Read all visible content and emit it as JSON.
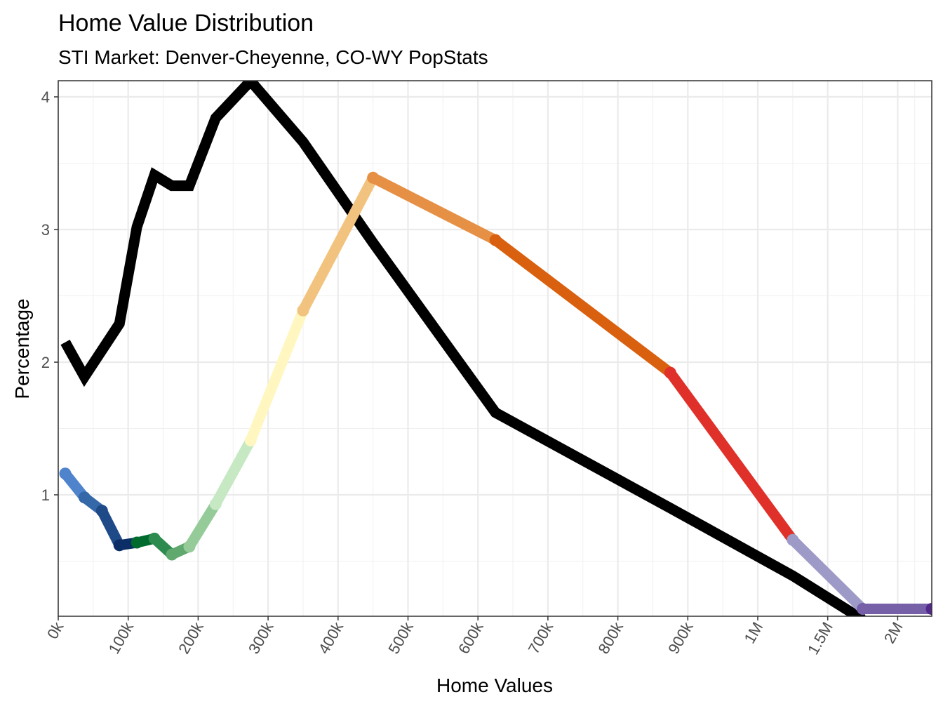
{
  "chart_data": {
    "type": "line",
    "title": "Home Value Distribution",
    "subtitle": "STI Market: Denver-Cheyenne, CO-WY PopStats",
    "xlabel": "Home Values",
    "ylabel": "Percentage",
    "x_ticks": [
      {
        "value": 0,
        "label": "0k"
      },
      {
        "value": 100000,
        "label": "100k"
      },
      {
        "value": 200000,
        "label": "200k"
      },
      {
        "value": 300000,
        "label": "300k"
      },
      {
        "value": 400000,
        "label": "400k"
      },
      {
        "value": 500000,
        "label": "500k"
      },
      {
        "value": 600000,
        "label": "600k"
      },
      {
        "value": 700000,
        "label": "700k"
      },
      {
        "value": 800000,
        "label": "800k"
      },
      {
        "value": 900000,
        "label": "900k"
      },
      {
        "value": 1000000,
        "label": "1M"
      },
      {
        "value": 1500000,
        "label": "1.5M"
      },
      {
        "value": 2000000,
        "label": "2M"
      }
    ],
    "x_max": 2250000,
    "y_ticks": [
      1,
      2,
      3,
      4
    ],
    "ylim": [
      0.085,
      4.12
    ],
    "grid": true,
    "series": [
      {
        "color": "#000000",
        "x": [
          10000,
          37500,
          87500,
          112500,
          137500,
          162500,
          187500,
          225000,
          275000,
          350000,
          450000,
          625000,
          875000,
          1250000,
          1750000
        ],
        "y": [
          2.15,
          1.89,
          2.29,
          3.02,
          3.41,
          3.33,
          3.33,
          3.84,
          4.12,
          3.66,
          2.9,
          1.62,
          0.9,
          0.39,
          0.06
        ]
      },
      {
        "x": [
          10000,
          37500,
          62500,
          87500,
          112500,
          137500,
          162500,
          187500,
          225000,
          275000,
          350000,
          450000,
          625000,
          875000,
          1250000,
          1750000,
          2250000
        ],
        "y": [
          1.16,
          0.98,
          0.88,
          0.62,
          0.64,
          0.67,
          0.55,
          0.61,
          0.93,
          1.41,
          2.39,
          3.39,
          2.92,
          1.92,
          0.66,
          0.14,
          0.14
        ],
        "colors": [
          "#4f83cc",
          "#3568a8",
          "#1f4a88",
          "#0b2e66",
          "#006b2e",
          "#2e8b50",
          "#5fa86e",
          "#94cb98",
          "#c6e8c3",
          "#fff6c0",
          "#f2c37e",
          "#e69046",
          "#d9600e",
          "#e0302a",
          "#9e9ac8",
          "#7660a8",
          "#54278f"
        ]
      }
    ]
  }
}
